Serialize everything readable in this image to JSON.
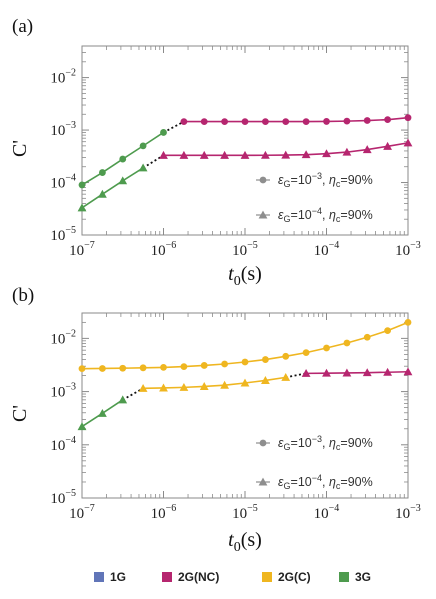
{
  "chart_data": [
    {
      "type": "line",
      "panel": "(a)",
      "ylabel": "C'",
      "xlabel": "t0(s)",
      "xscale": "log",
      "yscale": "log",
      "xlim": [
        1e-07,
        0.001
      ],
      "ylim": [
        1e-05,
        0.04
      ],
      "xticks": [
        "10^-7",
        "10^-6",
        "10^-5",
        "10^-4",
        "10^-3"
      ],
      "yticks": [
        "10^-5",
        "10^-4",
        "10^-3",
        "10^-2"
      ],
      "legend_placement": "bottom-right",
      "legend": [
        {
          "marker": "circle",
          "text_eps": "ε",
          "text_eps_sub": "G",
          "text_eps_val": "=10",
          "text_eps_exp": "−3",
          "text_eta": "η",
          "text_eta_sub": "c",
          "text_eta_val": "=90%"
        },
        {
          "marker": "triangle",
          "text_eps": "ε",
          "text_eps_sub": "G",
          "text_eps_val": "=10",
          "text_eps_exp": "−4",
          "text_eta": "η",
          "text_eta_sub": "c",
          "text_eta_val": "=90%"
        }
      ],
      "series": [
        {
          "marker": "circle",
          "regime": "3G",
          "x": [
            1e-07,
            1.78e-07,
            3.16e-07,
            5.62e-07,
            1e-06
          ],
          "y": [
            9e-05,
            0.000155,
            0.00028,
            0.0005,
            0.0009
          ]
        },
        {
          "marker": "circle",
          "regime": "2G(NC)",
          "x": [
            1.78e-06,
            3.16e-06,
            5.62e-06,
            1e-05,
            1.78e-05,
            3.16e-05,
            5.62e-05,
            0.0001,
            0.000178,
            0.000316,
            0.000562,
            0.001
          ],
          "y": [
            0.00145,
            0.00145,
            0.00145,
            0.00145,
            0.00145,
            0.00145,
            0.00145,
            0.00146,
            0.00148,
            0.00152,
            0.00158,
            0.00172
          ]
        },
        {
          "marker": "triangle",
          "regime": "3G",
          "x": [
            1e-07,
            1.78e-07,
            3.16e-07,
            5.62e-07
          ],
          "y": [
            3.3e-05,
            6e-05,
            0.000108,
            0.00019
          ]
        },
        {
          "marker": "triangle",
          "regime": "2G(NC)",
          "x": [
            1e-06,
            1.78e-06,
            3.16e-06,
            5.62e-06,
            1e-05,
            1.78e-05,
            3.16e-05,
            5.62e-05,
            0.0001,
            0.000178,
            0.000316,
            0.000562,
            0.001
          ],
          "y": [
            0.00033,
            0.00033,
            0.00033,
            0.00033,
            0.00033,
            0.000331,
            0.000334,
            0.00034,
            0.000355,
            0.00038,
            0.000425,
            0.00049,
            0.00057
          ]
        }
      ],
      "transitions": [
        {
          "from": [
            1e-06,
            0.0009
          ],
          "to": [
            1.78e-06,
            0.00145
          ]
        },
        {
          "from": [
            5.62e-07,
            0.00019
          ],
          "to": [
            1e-06,
            0.00033
          ]
        }
      ]
    },
    {
      "type": "line",
      "panel": "(b)",
      "ylabel": "C'",
      "xlabel": "t0(s)",
      "xscale": "log",
      "yscale": "log",
      "xlim": [
        1e-07,
        0.001
      ],
      "ylim": [
        1e-05,
        0.03
      ],
      "xticks": [
        "10^-7",
        "10^-6",
        "10^-5",
        "10^-4",
        "10^-3"
      ],
      "yticks": [
        "10^-5",
        "10^-4",
        "10^-3",
        "10^-2"
      ],
      "legend_placement": "bottom-right",
      "legend": [
        {
          "marker": "circle",
          "text_eps": "ε",
          "text_eps_sub": "G",
          "text_eps_val": "=10",
          "text_eps_exp": "−3",
          "text_eta": "η",
          "text_eta_sub": "c",
          "text_eta_val": "=90%"
        },
        {
          "marker": "triangle",
          "text_eps": "ε",
          "text_eps_sub": "G",
          "text_eps_val": "=10",
          "text_eps_exp": "−4",
          "text_eta": "η",
          "text_eta_sub": "c",
          "text_eta_val": "=90%"
        }
      ],
      "series": [
        {
          "marker": "circle",
          "regime": "2G(C)",
          "x": [
            1e-07,
            1.78e-07,
            3.16e-07,
            5.62e-07,
            1e-06,
            1.78e-06,
            3.16e-06,
            5.62e-06,
            1e-05,
            1.78e-05,
            3.16e-05,
            5.62e-05,
            0.0001,
            0.000178,
            0.000316,
            0.000562,
            0.001
          ],
          "y": [
            0.0027,
            0.00272,
            0.00275,
            0.0028,
            0.00285,
            0.00295,
            0.0031,
            0.0033,
            0.0036,
            0.004,
            0.0046,
            0.0054,
            0.0066,
            0.0082,
            0.0105,
            0.014,
            0.02
          ]
        },
        {
          "marker": "triangle",
          "regime": "3G",
          "x": [
            1e-07,
            1.78e-07,
            3.16e-07
          ],
          "y": [
            0.00022,
            0.00039,
            0.0007
          ]
        },
        {
          "marker": "triangle",
          "regime": "2G(C)",
          "x": [
            5.62e-07,
            1e-06,
            1.78e-06,
            3.16e-06,
            5.62e-06,
            1e-05,
            1.78e-05,
            3.16e-05
          ],
          "y": [
            0.00115,
            0.00117,
            0.0012,
            0.00125,
            0.00132,
            0.00145,
            0.00162,
            0.00185
          ]
        },
        {
          "marker": "triangle",
          "regime": "2G(NC)",
          "x": [
            5.62e-05,
            0.0001,
            0.000178,
            0.000316,
            0.000562,
            0.001
          ],
          "y": [
            0.0022,
            0.00222,
            0.00224,
            0.00227,
            0.00231,
            0.00236
          ]
        }
      ],
      "transitions": [
        {
          "from": [
            3.16e-07,
            0.0007
          ],
          "to": [
            5.62e-07,
            0.00115
          ]
        },
        {
          "from": [
            3.16e-05,
            0.00185
          ],
          "to": [
            5.62e-05,
            0.0022
          ]
        }
      ]
    }
  ],
  "regimes": [
    {
      "key": "1G",
      "label": "1G",
      "color": "#6175B8"
    },
    {
      "key": "2G(NC)",
      "label": "2G(NC)",
      "color": "#B6266F"
    },
    {
      "key": "2G(C)",
      "label": "2G(C)",
      "color": "#EFB620"
    },
    {
      "key": "3G",
      "label": "3G",
      "color": "#4E9B4E"
    }
  ],
  "colors": {
    "marker_gray": "#8E8E8E",
    "frame": "#8A8A8A",
    "transition": "#111111"
  }
}
